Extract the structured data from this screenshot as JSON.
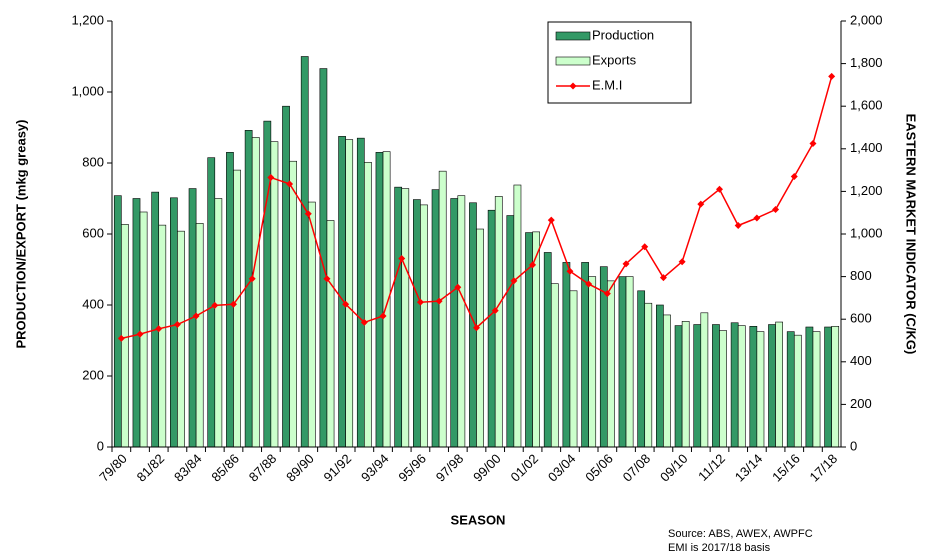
{
  "chart_data": {
    "type": "bar_line",
    "xlabel": "SEASON",
    "ylabel": "PRODUCTION/EXPORT (mkg greasy)",
    "y2label": "EASTERN MARKET INDICATOR (C/KG)",
    "notes": [
      "Source: ABS, AWEX, AWPFC",
      "EMI is 2017/18 basis"
    ],
    "categories": [
      "79/80",
      null,
      "81/82",
      null,
      "83/84",
      null,
      "85/86",
      null,
      "87/88",
      null,
      "89/90",
      null,
      "91/92",
      null,
      "93/94",
      null,
      "95/96",
      null,
      "97/98",
      null,
      "99/00",
      null,
      "01/02",
      null,
      "03/04",
      null,
      "05/06",
      null,
      "07/08",
      null,
      "09/10",
      null,
      "11/12",
      null,
      "13/14",
      null,
      "15/16",
      null,
      "17/18"
    ],
    "series": [
      {
        "name": "Production",
        "color": "#339966",
        "kind": "bar",
        "axis": "y",
        "values": [
          708,
          700,
          718,
          702,
          728,
          815,
          830,
          892,
          918,
          960,
          1100,
          1066,
          875,
          870,
          830,
          732,
          697,
          725,
          700,
          688,
          667,
          652,
          604,
          548,
          520,
          520,
          508,
          480,
          440,
          400,
          342,
          345,
          345,
          350,
          340,
          345,
          325,
          338,
          338
        ]
      },
      {
        "name": "Exports",
        "color": "#ccffcc",
        "kind": "bar",
        "axis": "y",
        "values": [
          627,
          662,
          625,
          608,
          630,
          700,
          780,
          872,
          860,
          805,
          690,
          638,
          866,
          802,
          832,
          728,
          682,
          777,
          708,
          614,
          706,
          738,
          606,
          460,
          440,
          480,
          468,
          480,
          405,
          372,
          354,
          378,
          328,
          342,
          325,
          352,
          315,
          325,
          340
        ]
      },
      {
        "name": "E.M.I",
        "color": "#ff0000",
        "kind": "line",
        "axis": "y2",
        "values": [
          510,
          530,
          555,
          575,
          615,
          665,
          670,
          790,
          1265,
          1235,
          1095,
          790,
          670,
          585,
          615,
          885,
          680,
          685,
          750,
          560,
          640,
          780,
          855,
          1065,
          825,
          765,
          720,
          860,
          940,
          795,
          870,
          1140,
          1210,
          1040,
          1075,
          1115,
          1270,
          1425,
          1740
        ]
      }
    ],
    "ylim": [
      0,
      1200
    ],
    "yticks": [
      0,
      200,
      400,
      600,
      800,
      {
        "value": 1000,
        "label": "1,000"
      },
      {
        "value": 1200,
        "label": "1,200"
      }
    ],
    "y2lim": [
      0,
      2000
    ],
    "y2ticks": [
      0,
      200,
      400,
      600,
      800,
      {
        "value": 1000,
        "label": "1,000"
      },
      {
        "value": 1200,
        "label": "1,200"
      },
      {
        "value": 1400,
        "label": "1,400"
      },
      {
        "value": 1600,
        "label": "1,600"
      },
      {
        "value": 1800,
        "label": "1,800"
      },
      {
        "value": 2000,
        "label": "2,000"
      }
    ],
    "legend": "upper center",
    "grid": false
  }
}
